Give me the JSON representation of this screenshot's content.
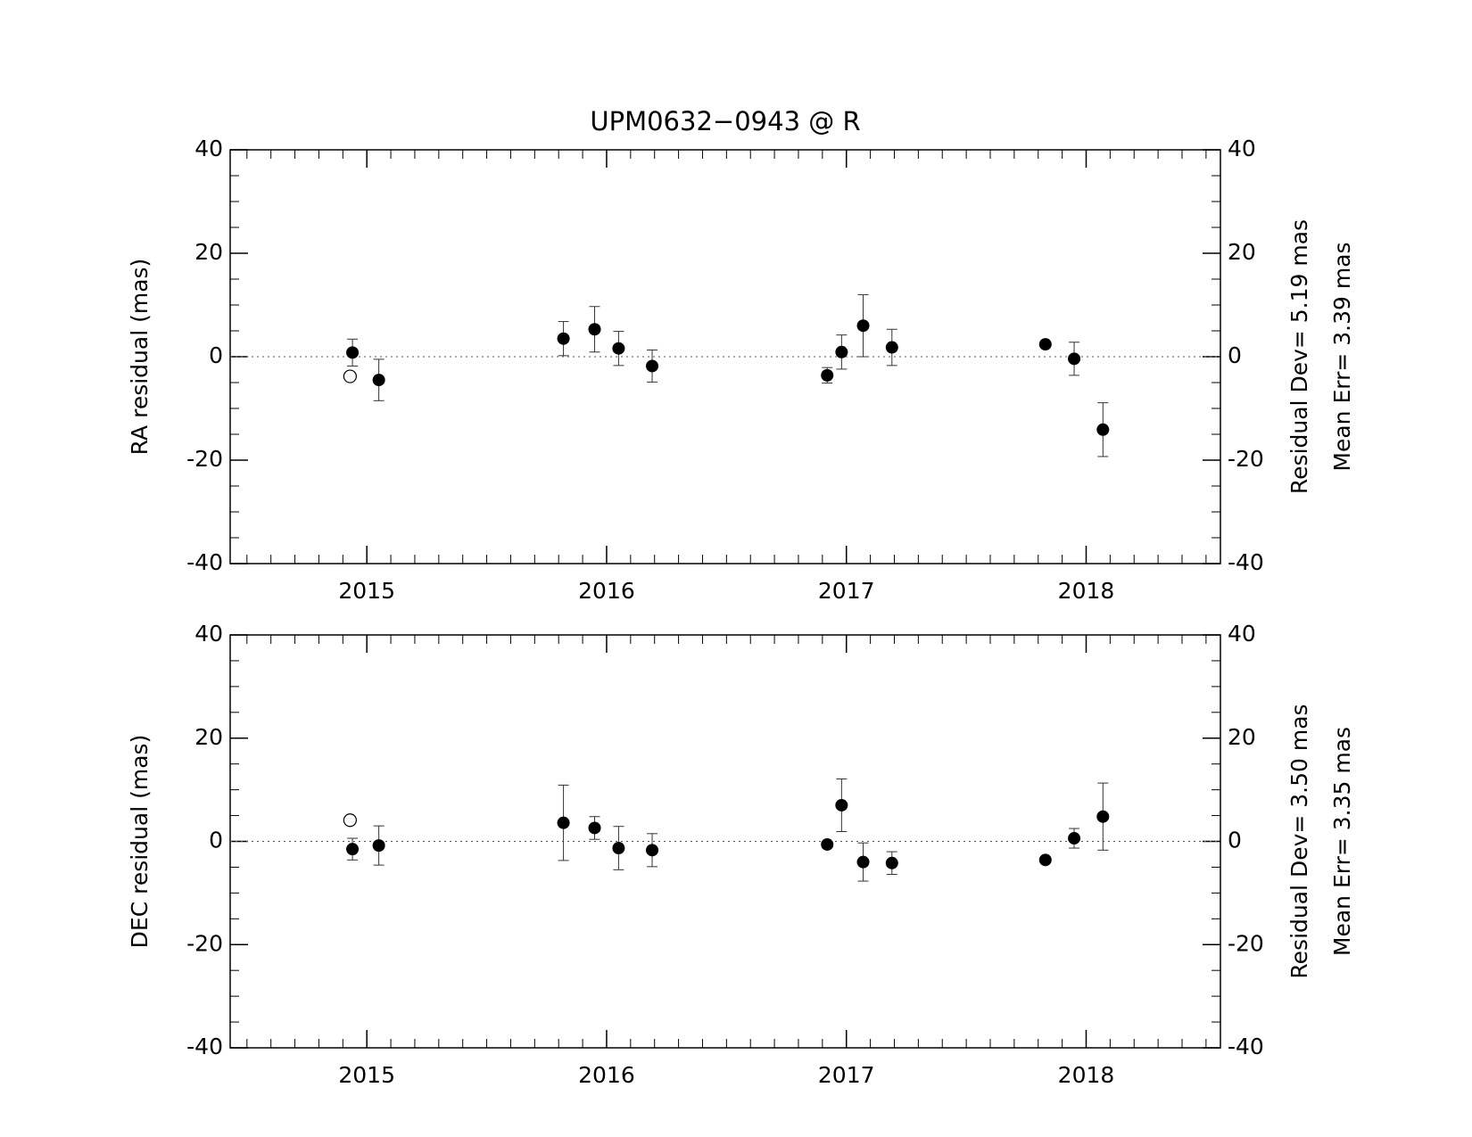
{
  "chart_data": [
    {
      "type": "scatter",
      "title": "UPM0632−0943 @ R",
      "y_label": "RA residual (mas)",
      "annotations": [
        "Residual Dev=  5.19  mas",
        "Mean  Err=  3.39  mas"
      ],
      "xlim": [
        2014.43,
        2018.56
      ],
      "xticks": [
        2015,
        2016,
        2017,
        2018
      ],
      "xminor_step": 0.1,
      "ylim": [
        -40,
        40
      ],
      "yticks": [
        -40,
        -20,
        0,
        20,
        40
      ],
      "yminor_step": 5,
      "reference_line": 0,
      "x": [
        2014.94,
        2015.05,
        2015.82,
        2015.95,
        2016.05,
        2016.19,
        2016.92,
        2016.98,
        2017.07,
        2017.19,
        2017.83,
        2017.95,
        2018.07
      ],
      "values": [
        0.8,
        -4.5,
        3.5,
        5.3,
        1.6,
        -1.8,
        -3.6,
        0.9,
        6.0,
        1.8,
        2.4,
        -0.4,
        -14.1
      ],
      "errors": [
        2.6,
        4.0,
        3.3,
        4.4,
        3.3,
        3.1,
        1.5,
        3.3,
        6.0,
        3.5,
        0.5,
        3.2,
        5.2
      ],
      "rejected_x": [
        2014.93
      ],
      "rejected_values": [
        -3.8
      ]
    },
    {
      "type": "scatter",
      "y_label": "DEC residual (mas)",
      "annotations": [
        "Residual Dev=  3.50  mas",
        "Mean  Err=  3.35  mas"
      ],
      "xlim": [
        2014.43,
        2018.56
      ],
      "xticks": [
        2015,
        2016,
        2017,
        2018
      ],
      "xminor_step": 0.1,
      "ylim": [
        -40,
        40
      ],
      "yticks": [
        -40,
        -20,
        0,
        20,
        40
      ],
      "yminor_step": 5,
      "reference_line": 0,
      "x": [
        2014.94,
        2015.05,
        2015.82,
        2015.95,
        2016.05,
        2016.19,
        2016.92,
        2016.98,
        2017.07,
        2017.19,
        2017.83,
        2017.95,
        2018.07
      ],
      "values": [
        -1.5,
        -0.8,
        3.6,
        2.6,
        -1.3,
        -1.7,
        -0.6,
        7.0,
        -4.0,
        -4.2,
        -3.6,
        0.6,
        4.8
      ],
      "errors": [
        2.1,
        3.8,
        7.3,
        2.2,
        4.2,
        3.2,
        0.6,
        5.1,
        3.7,
        2.2,
        0.5,
        1.9,
        6.5
      ],
      "rejected_x": [
        2014.93
      ],
      "rejected_values": [
        4.1
      ]
    }
  ]
}
